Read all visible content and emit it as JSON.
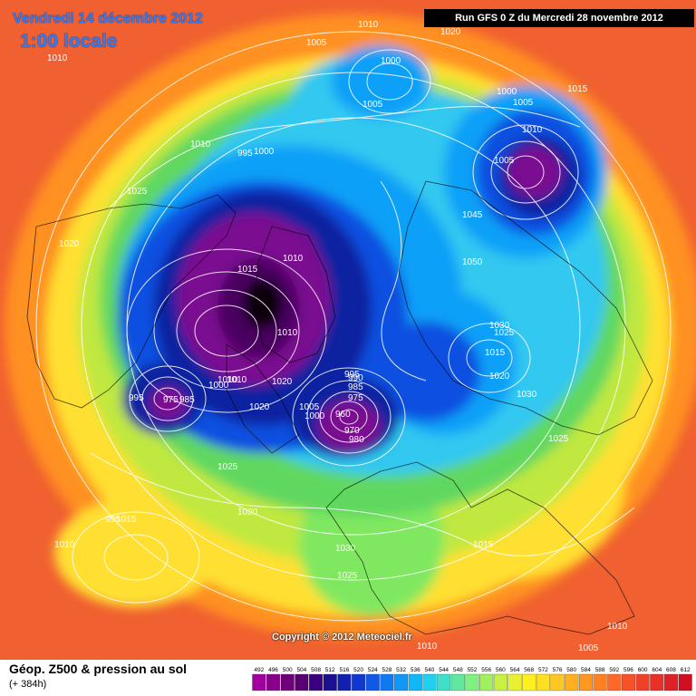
{
  "header": {
    "date": "Vendredi 14 décembre 2012",
    "local_time": "1:00 locale",
    "run": "Run GFS 0 Z du Mercredi 28 novembre 2012"
  },
  "footer": {
    "product": "Géop. Z500 & pression au sol",
    "lead": "(+ 384h)",
    "copyright": "Copyright © 2012 Meteociel.fr"
  },
  "legend": {
    "ticks": [
      "492",
      "496",
      "500",
      "504",
      "508",
      "512",
      "516",
      "520",
      "524",
      "528",
      "532",
      "536",
      "540",
      "544",
      "548",
      "552",
      "556",
      "560",
      "564",
      "568",
      "572",
      "576",
      "580",
      "584",
      "588",
      "592",
      "596",
      "600",
      "604",
      "608",
      "612"
    ],
    "colors": [
      "#a000a0",
      "#8a008a",
      "#70007a",
      "#5a0070",
      "#3a0080",
      "#1a1090",
      "#1020b0",
      "#1038d0",
      "#1058e8",
      "#1078f0",
      "#1098f8",
      "#10b8f8",
      "#20d0f0",
      "#40e0c8",
      "#60e8a0",
      "#80f080",
      "#a0f060",
      "#c8f040",
      "#e8f030",
      "#fff020",
      "#ffe020",
      "#ffc820",
      "#ffb020",
      "#ff9820",
      "#ff8020",
      "#ff6828",
      "#f85028",
      "#f04028",
      "#e83028",
      "#e02028",
      "#d01020"
    ]
  },
  "map": {
    "colors": {
      "outer": "#f06030",
      "orange": "#ff9020",
      "yellow": "#ffe030",
      "yellowgreen": "#c0e840",
      "green": "#60d860",
      "cyan": "#30c8f0",
      "lightblue": "#10a0f8",
      "blue": "#1050e0",
      "darkblue": "#1020a0",
      "purple": "#7a1090",
      "darkpurple": "#4a0060",
      "black": "#100010"
    },
    "pressure_labels": [
      "1010",
      "1005",
      "1000",
      "1010",
      "1015",
      "1020",
      "1000",
      "1005",
      "1010",
      "1005",
      "1010",
      "995",
      "1000",
      "1025",
      "1020",
      "1015",
      "1010",
      "1050",
      "1045",
      "1005",
      "1030",
      "1025",
      "1015",
      "1020",
      "1025",
      "1010",
      "995",
      "1010",
      "1010",
      "1000",
      "1020",
      "1020",
      "1010",
      "995",
      "990",
      "985",
      "975",
      "1005",
      "1000",
      "960",
      "970",
      "980",
      "995",
      "975",
      "985",
      "1030",
      "1025",
      "1030",
      "1025",
      "1020",
      "1015",
      "1010",
      "1005",
      "1010",
      "1015"
    ]
  }
}
